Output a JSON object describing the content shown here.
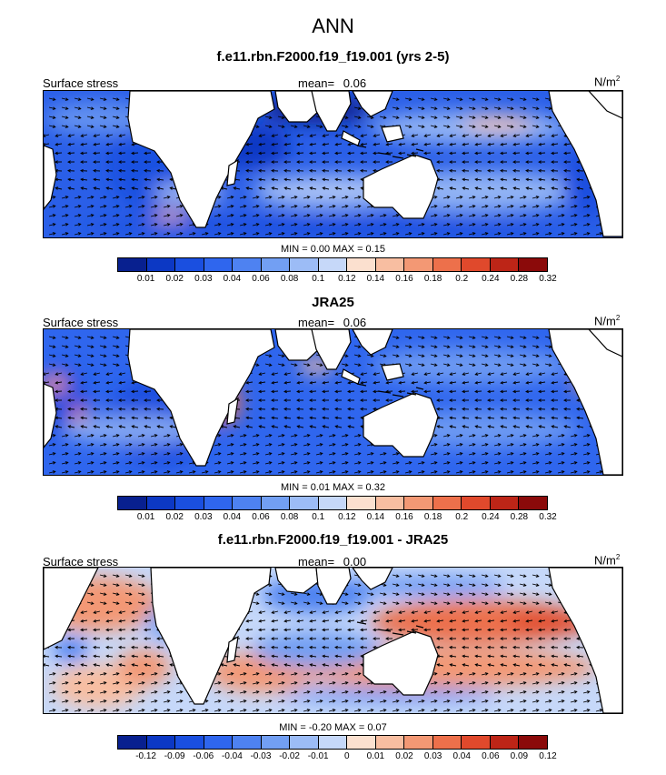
{
  "title": "ANN",
  "panels": [
    {
      "title": "f.e11.rbn.F2000.f19_f19.001 (yrs 2-5)",
      "left_label": "Surface stress",
      "mean_label": "mean=",
      "mean_value": "0.06",
      "units": "N/m",
      "units_sup": "2",
      "minmax": "MIN =  0.00 MAX =  0.15",
      "colorbar_ticks": [
        "0.01",
        "0.02",
        "0.03",
        "0.04",
        "0.06",
        "0.08",
        "0.1",
        "0.12",
        "0.14",
        "0.16",
        "0.18",
        "0.2",
        "0.24",
        "0.28",
        "0.32"
      ]
    },
    {
      "title": "JRA25",
      "left_label": "Surface stress",
      "mean_label": "mean=",
      "mean_value": "0.06",
      "units": "N/m",
      "units_sup": "2",
      "minmax": "MIN =  0.01 MAX =  0.32",
      "colorbar_ticks": [
        "0.01",
        "0.02",
        "0.03",
        "0.04",
        "0.06",
        "0.08",
        "0.1",
        "0.12",
        "0.14",
        "0.16",
        "0.18",
        "0.2",
        "0.24",
        "0.28",
        "0.32"
      ]
    },
    {
      "title": "f.e11.rbn.F2000.f19_f19.001 - JRA25",
      "left_label": "Surface stress",
      "mean_label": "mean=",
      "mean_value": "0.00",
      "units": "N/m",
      "units_sup": "2",
      "minmax": "MIN = -0.20 MAX =  0.07",
      "colorbar_ticks": [
        "-0.12",
        "-0.09",
        "-0.06",
        "-0.04",
        "-0.03",
        "-0.02",
        "-0.01",
        "0",
        "0.01",
        "0.02",
        "0.03",
        "0.04",
        "0.06",
        "0.09",
        "0.12"
      ]
    }
  ],
  "colors": {
    "colorbar": [
      "#08208f",
      "#0c38c4",
      "#1a4fe0",
      "#2f66ee",
      "#4e82f1",
      "#729ff3",
      "#9cbcf6",
      "#c6d8f9",
      "#fbe0cf",
      "#f8bea1",
      "#f39874",
      "#ed704b",
      "#e0492c",
      "#bd2517",
      "#8b0a0a"
    ],
    "land": "#ffffff",
    "coast": "#000000",
    "arrow": "#000000"
  }
}
